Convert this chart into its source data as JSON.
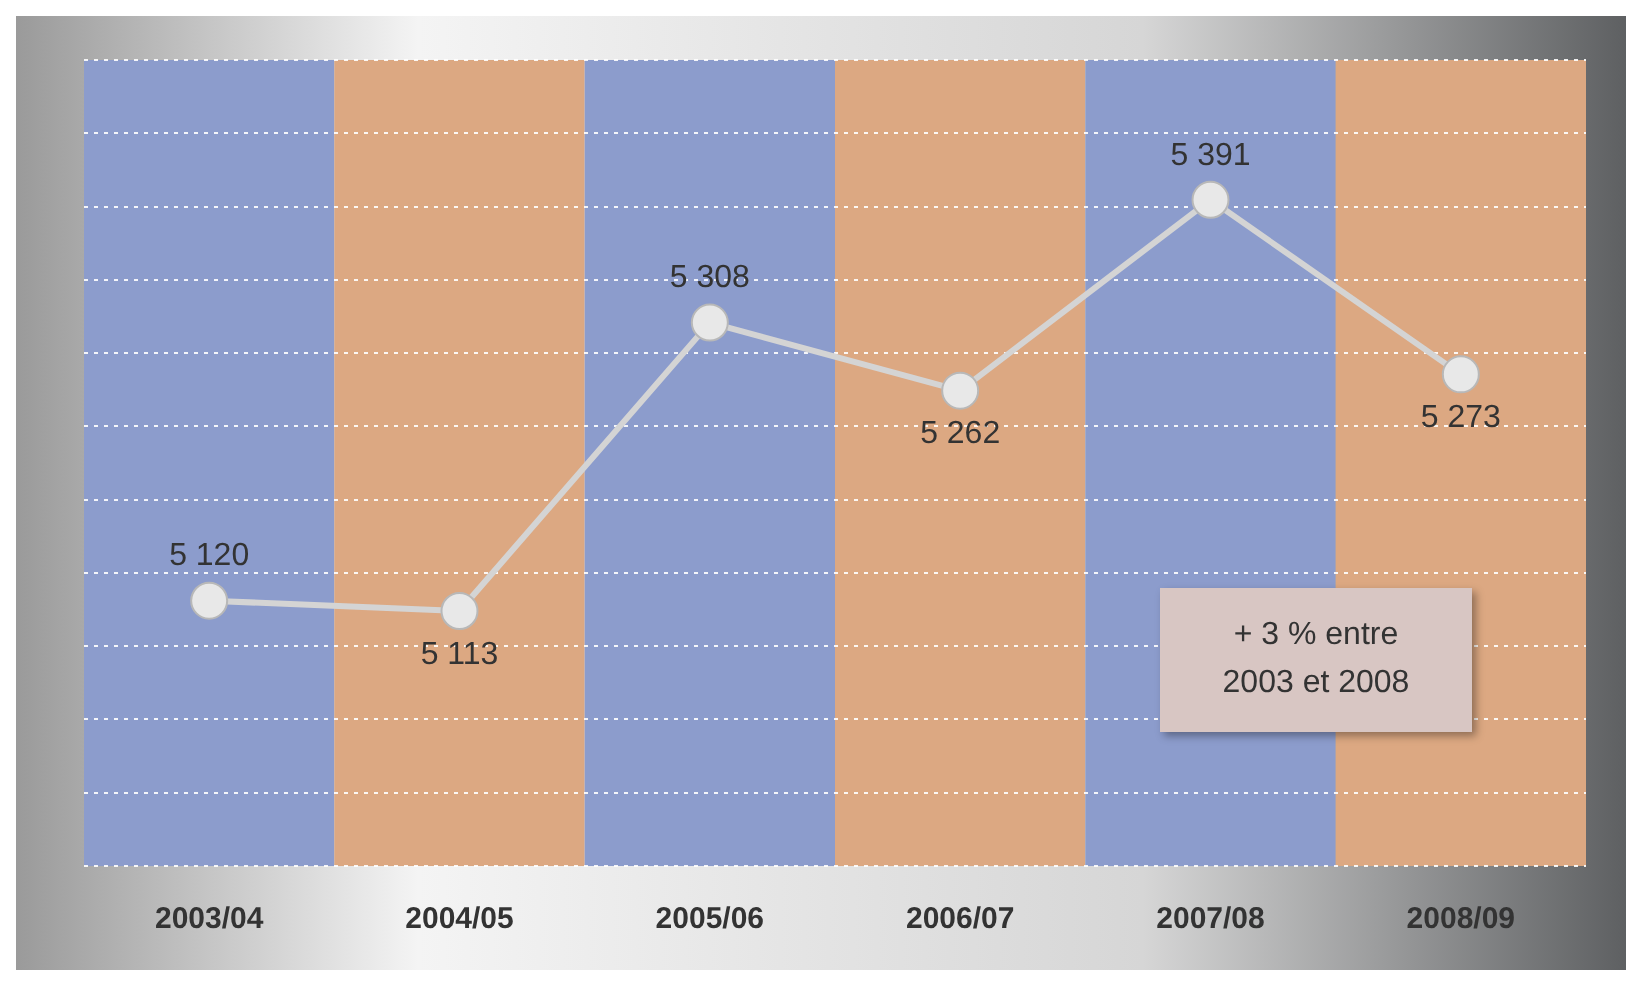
{
  "chart_data": {
    "type": "line",
    "categories": [
      "2003/04",
      "2004/05",
      "2005/06",
      "2006/07",
      "2007/08",
      "2008/09"
    ],
    "series": [
      {
        "color": "#d4d4d4",
        "values": [
          5120,
          5113,
          5308,
          5262,
          5391,
          5273
        ]
      }
    ],
    "bands": [
      {
        "axis": "x",
        "from": "2003/04",
        "to": "2003/04",
        "color": "#8c9ccc"
      },
      {
        "axis": "x",
        "from": "2004/05",
        "to": "2004/05",
        "color": "#dca882"
      },
      {
        "axis": "x",
        "from": "2005/06",
        "to": "2005/06",
        "color": "#8c9ccc"
      },
      {
        "axis": "x",
        "from": "2006/07",
        "to": "2006/07",
        "color": "#dca882"
      },
      {
        "axis": "x",
        "from": "2007/08",
        "to": "2007/08",
        "color": "#8c9ccc"
      },
      {
        "axis": "x",
        "from": "2008/09",
        "to": "2008/09",
        "color": "#dca882"
      }
    ],
    "data_labels": true,
    "grid": "y",
    "marker": "circle",
    "line_style": "solid",
    "legend": false,
    "tick_labels": "x",
    "annotations": [
      "+ 3 % entre\n2003 et 2008"
    ]
  }
}
